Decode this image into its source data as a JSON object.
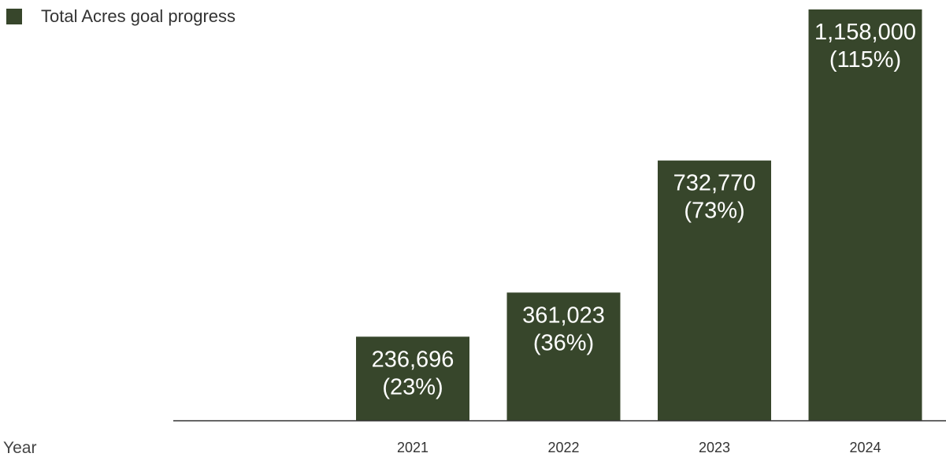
{
  "legend": {
    "label": "Total Acres goal progress",
    "color": "#37462b"
  },
  "axis": {
    "x_title": "Year"
  },
  "chart_data": {
    "type": "bar",
    "categories": [
      "2021",
      "2022",
      "2023",
      "2024"
    ],
    "series": [
      {
        "name": "Total Acres goal progress",
        "values": [
          236696,
          361023,
          732770,
          1158000
        ],
        "percents": [
          "23%",
          "36%",
          "73%",
          "115%"
        ]
      }
    ],
    "labels": [
      [
        "236,696",
        "(23%)"
      ],
      [
        "361,023",
        "(36%)"
      ],
      [
        "732,770",
        "(73%)"
      ],
      [
        "1,158,000",
        "(115%)"
      ]
    ],
    "xlabel": "Year",
    "ylabel": "",
    "ylim": [
      0,
      1200000
    ],
    "grid": false,
    "legend_position": "top-left",
    "bar_color": "#37462b"
  }
}
